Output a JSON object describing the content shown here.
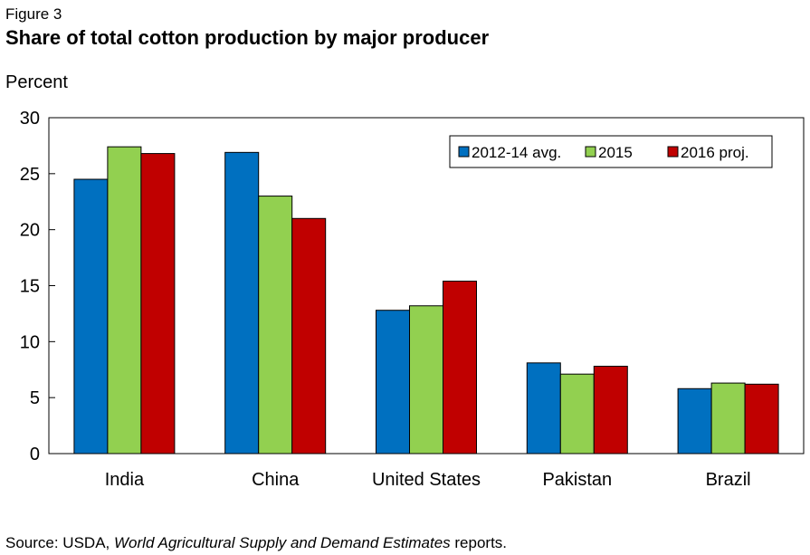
{
  "figure_label": "Figure 3",
  "source": {
    "prefix": "Source:  USDA, ",
    "italic": "World Agricultural Supply and Demand Estimates",
    "suffix": " reports."
  },
  "chart_data": {
    "type": "bar",
    "title": "Share of total cotton production by major producer",
    "ylabel": "Percent",
    "xlabel": "",
    "ylim": [
      0,
      30
    ],
    "yticks": [
      0,
      5,
      10,
      15,
      20,
      25,
      30
    ],
    "categories": [
      "India",
      "China",
      "United States",
      "Pakistan",
      "Brazil"
    ],
    "series": [
      {
        "name": "2012-14 avg.",
        "color": "#0070c0",
        "values": [
          24.5,
          26.9,
          12.8,
          8.1,
          5.8
        ]
      },
      {
        "name": "2015",
        "color": "#92d050",
        "values": [
          27.4,
          23.0,
          13.2,
          7.1,
          6.3
        ]
      },
      {
        "name": "2016 proj.",
        "color": "#c00000",
        "values": [
          26.8,
          21.0,
          15.4,
          7.8,
          6.2
        ]
      }
    ],
    "legend_position": "top-right",
    "grid": false
  }
}
